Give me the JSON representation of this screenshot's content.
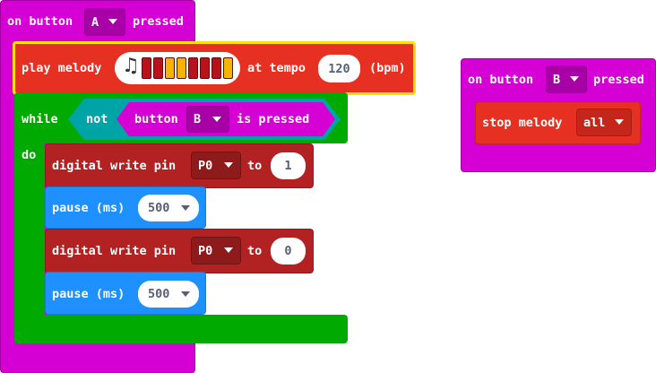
{
  "event_a": {
    "prefix": "on button",
    "button": "A",
    "suffix": "pressed"
  },
  "melody": {
    "prefix": "play melody",
    "tempo_label": "at tempo",
    "tempo": "120",
    "unit": "(bpm)",
    "note_colors": [
      "#b9121b",
      "#b9121b",
      "#f4b400",
      "#f4b400",
      "#b9121b",
      "#b9121b",
      "#b9121b",
      "#f4b400"
    ]
  },
  "loop": {
    "while_label": "while",
    "not_label": "not",
    "button_label": "button",
    "button": "B",
    "pressed_label": "is pressed",
    "do_label": "do"
  },
  "write1": {
    "prefix": "digital write pin",
    "pin": "P0",
    "to_label": "to",
    "value": "1"
  },
  "pause1": {
    "prefix": "pause (ms)",
    "value": "500"
  },
  "write2": {
    "prefix": "digital write pin",
    "pin": "P0",
    "to_label": "to",
    "value": "0"
  },
  "pause2": {
    "prefix": "pause (ms)",
    "value": "500"
  },
  "event_b": {
    "prefix": "on button",
    "button": "B",
    "suffix": "pressed"
  },
  "stop": {
    "prefix": "stop melody",
    "option": "all"
  },
  "colors": {
    "input_purple": "#d400d4",
    "music_red": "#e63022",
    "logic_green": "#00a4a6",
    "loops_green": "#00aa00",
    "pins_red": "#b22222",
    "basic_blue": "#1e90ff"
  }
}
